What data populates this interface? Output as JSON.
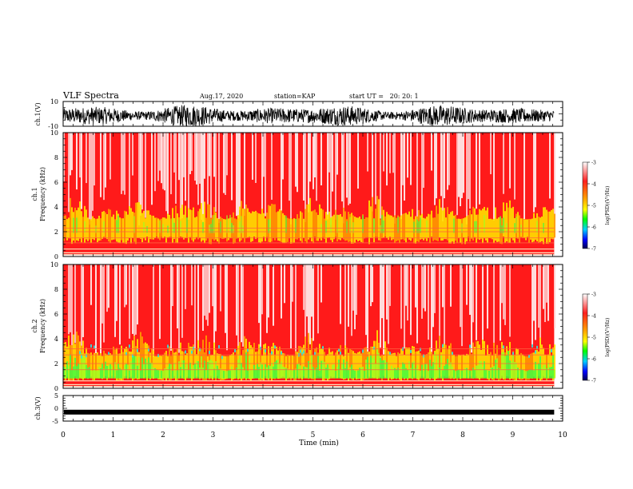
{
  "header": {
    "title": "VLF Spectra",
    "date": "Aug.17, 2020",
    "station": "station=KAP",
    "start": "start UT =   20: 20: 1"
  },
  "chart_data": [
    {
      "type": "line",
      "name": "ch1-waveform",
      "ylabel": "ch.1(V)",
      "xlim": [
        0,
        10
      ],
      "ylim": [
        -10,
        10
      ],
      "yticks": [
        "10",
        "-10"
      ],
      "color": "#000000"
    },
    {
      "type": "heatmap",
      "name": "ch1-spectrogram",
      "ylabel": "ch.1\nFrequency (kHz)",
      "xlim": [
        0,
        10
      ],
      "ylim": [
        0,
        10
      ],
      "yticks": [
        "0",
        "2",
        "4",
        "6",
        "8",
        "10"
      ],
      "colorbar": {
        "label": "log(PSD)(V²/Hz)",
        "range": [
          -7,
          -3
        ],
        "ticks": [
          "-3",
          "-4",
          "-5",
          "-6",
          "-7"
        ]
      }
    },
    {
      "type": "heatmap",
      "name": "ch2-spectrogram",
      "ylabel": "ch.2\nFrequency (kHz)",
      "xlim": [
        0,
        10
      ],
      "ylim": [
        0,
        10
      ],
      "yticks": [
        "0",
        "2",
        "4",
        "6",
        "8",
        "10"
      ],
      "colorbar": {
        "label": "log(PSD)(V²/Hz)",
        "range": [
          -7,
          -3
        ],
        "ticks": [
          "-3",
          "-4",
          "-5",
          "-6",
          "-7"
        ]
      }
    },
    {
      "type": "line",
      "name": "ch3-waveform",
      "ylabel": "ch.3(V)",
      "xlim": [
        0,
        10
      ],
      "ylim": [
        -5,
        5
      ],
      "yticks": [
        "5",
        "0",
        "-5"
      ],
      "xlabel": "Time (min)",
      "xticks": [
        "0",
        "1",
        "2",
        "3",
        "4",
        "5",
        "6",
        "7",
        "8",
        "9",
        "10"
      ],
      "trace_level": -1.5,
      "color": "#000000"
    }
  ],
  "colors": {
    "white": "#ffffff",
    "red": "#ff0000",
    "yellow": "#ffff00",
    "green": "#00ff00",
    "cyan": "#00ffff",
    "blue": "#0000ff",
    "navy": "#000060"
  }
}
